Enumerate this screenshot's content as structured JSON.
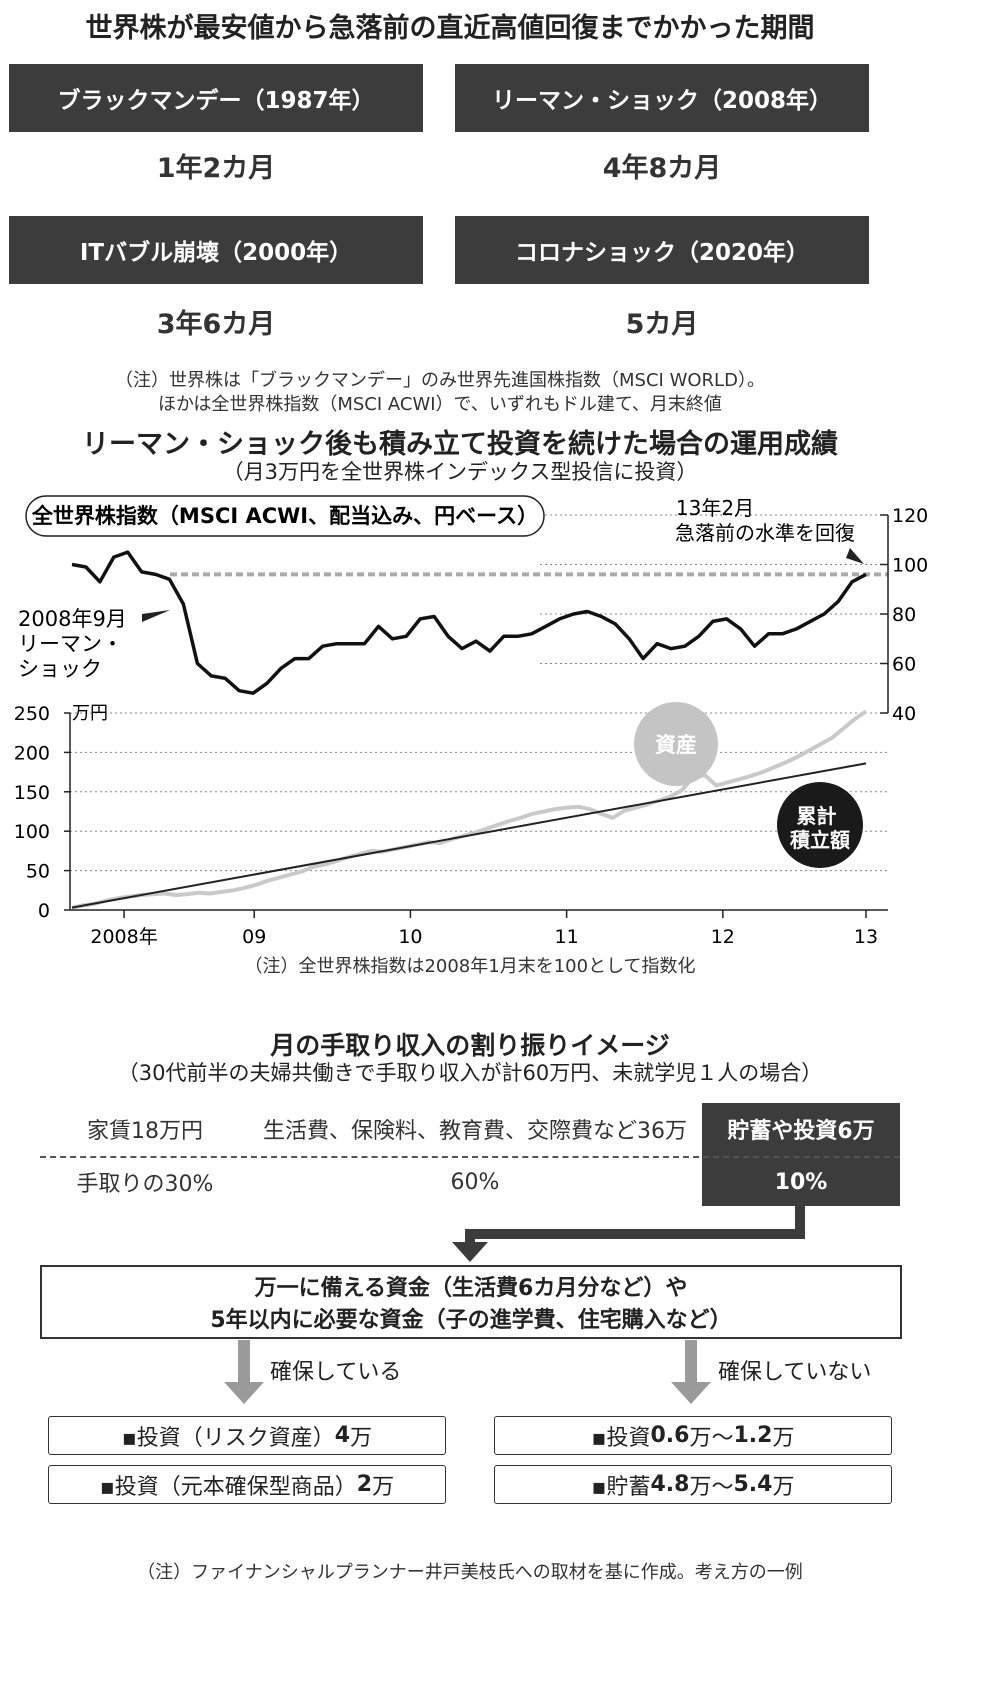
{
  "section1": {
    "title": "世界株が最安値から急落前の直近高値回復までかかった期間",
    "events": [
      {
        "label": "ブラックマンデー（1987年）",
        "duration": "1年2カ月"
      },
      {
        "label": "リーマン・ショック（2008年）",
        "duration": "4年8カ月"
      },
      {
        "label": "ITバブル崩壊（2000年）",
        "duration": "3年6カ月"
      },
      {
        "label": "コロナショック（2020年）",
        "duration": "5カ月"
      }
    ],
    "note_line1": "（注）世界株は「ブラックマンデー」のみ世界先進国株指数（MSCI WORLD）。",
    "note_line2": "ほかは全世界株指数（MSCI ACWI）で、いずれもドル建て、月末終値"
  },
  "section2": {
    "title": "リーマン・ショック後も積み立て投資を続けた場合の運用成績",
    "subtitle": "（月3万円を全世界株インデックス型投信に投資）",
    "note": "（注）全世界株指数は2008年1月末を100として指数化"
  },
  "chart_data": [
    {
      "type": "line",
      "title": "全世界株指数（MSCI ACWI、配当込み、円ベース）",
      "ylim": [
        40,
        120
      ],
      "yticks": [
        "120",
        "100",
        "80",
        "60",
        "40"
      ],
      "y_axis_side": "right",
      "reference_line": 96,
      "annotations": [
        {
          "line1": "13年2月",
          "line2": "急落前の水準を回復"
        },
        {
          "line1": "2008年9月",
          "line2": "リーマン・",
          "line3": "ショック"
        }
      ],
      "series": [
        {
          "values": [
            100,
            99,
            93,
            103,
            105,
            97,
            96,
            94,
            84,
            60,
            55,
            54,
            49,
            48,
            52,
            58,
            62,
            62,
            67,
            68,
            68,
            68,
            75,
            70,
            71,
            78,
            79,
            71,
            66,
            69,
            65,
            71,
            71,
            72,
            75,
            78,
            80,
            81,
            79,
            76,
            70,
            62,
            68,
            66,
            67,
            71,
            77,
            78,
            74,
            67,
            72,
            72,
            74,
            77,
            80,
            85,
            93,
            96
          ]
        }
      ]
    },
    {
      "type": "line",
      "ylabel": "万円",
      "ylim": [
        0,
        250
      ],
      "yticks": [
        "250",
        "200",
        "150",
        "100",
        "50",
        "0"
      ],
      "xticks": [
        {
          "label": "2008年",
          "month": 4
        },
        {
          "label": "09",
          "month": 14
        },
        {
          "label": "10",
          "month": 26
        },
        {
          "label": "11",
          "month": 38
        },
        {
          "label": "12",
          "month": 50
        },
        {
          "label": "13",
          "month": 61
        }
      ],
      "series": [
        {
          "name": "資産",
          "color": "#c9c9c9",
          "values": [
            3,
            6,
            8,
            12,
            15,
            17,
            19,
            20,
            21,
            19,
            20,
            22,
            21,
            23,
            25,
            28,
            32,
            37,
            41,
            45,
            49,
            55,
            58,
            62,
            67,
            71,
            75,
            74,
            77,
            80,
            83,
            86,
            85,
            90,
            94,
            98,
            103,
            108,
            113,
            117,
            122,
            125,
            128,
            130,
            131,
            128,
            122,
            117,
            126,
            130,
            134,
            139,
            144,
            152,
            169,
            171,
            158,
            162,
            166,
            170,
            175,
            181,
            187,
            194,
            202,
            210,
            218,
            230,
            242,
            252
          ]
        },
        {
          "name": "累計積立額",
          "color": "#222222",
          "values": [
            3,
            186
          ]
        }
      ]
    }
  ],
  "section3": {
    "title": "月の手取り収入の割り振りイメージ",
    "subtitle": "（30代前半の夫婦共働きで手取り収入が計60万円、未就学児１人の場合）",
    "row1": [
      "家賃18万円",
      "生活費、保険料、教育費、交際費など36万",
      "貯蓄や投資6万"
    ],
    "row2": [
      "手取りの30%",
      "60%",
      "10%"
    ],
    "box_line1": "万一に備える資金（生活費6カ月分など）や",
    "box_line2": "5年以内に必要な資金（子の進学費、住宅購入など）",
    "left_label": "確保している",
    "right_label": "確保していない",
    "left_items": [
      {
        "prefix": "▪投資（リスク資産）",
        "amount": "4",
        "suffix": "万"
      },
      {
        "prefix": "▪投資（元本確保型商品）",
        "amount": "2",
        "suffix": "万"
      }
    ],
    "right_items": [
      {
        "prefix": "▪投資",
        "amount": "0.6",
        "suffix": "万〜",
        "amount2": "1.2",
        "suffix2": "万"
      },
      {
        "prefix": "▪貯蓄",
        "amount": "4.8",
        "suffix": "万〜",
        "amount2": "5.4",
        "suffix2": "万"
      }
    ],
    "note": "（注）ファイナンシャルプランナー井戸美枝氏への取材を基に作成。考え方の一例"
  }
}
